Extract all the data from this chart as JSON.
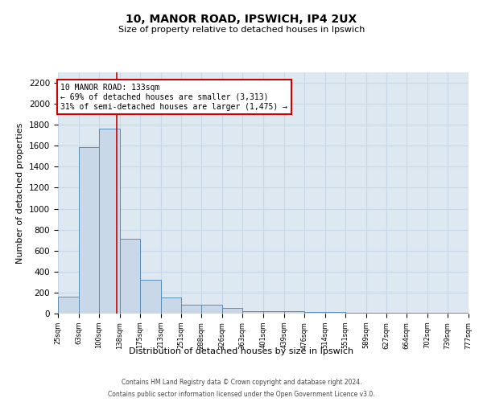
{
  "title1": "10, MANOR ROAD, IPSWICH, IP4 2UX",
  "title2": "Size of property relative to detached houses in Ipswich",
  "xlabel": "Distribution of detached houses by size in Ipswich",
  "ylabel": "Number of detached properties",
  "bin_edges": [
    25,
    63,
    100,
    138,
    175,
    213,
    251,
    288,
    326,
    363,
    401,
    439,
    476,
    514,
    551,
    589,
    627,
    664,
    702,
    739,
    777
  ],
  "bar_heights": [
    160,
    1590,
    1760,
    710,
    320,
    155,
    85,
    85,
    50,
    25,
    20,
    20,
    15,
    15,
    10,
    10,
    10,
    10,
    10,
    10
  ],
  "bar_color": "#c8d8e8",
  "bar_edge_color": "#5b8db8",
  "red_line_x": 133,
  "annotation_text": "10 MANOR ROAD: 133sqm\n← 69% of detached houses are smaller (3,313)\n31% of semi-detached houses are larger (1,475) →",
  "annotation_box_color": "#ffffff",
  "annotation_box_edge": "#cc0000",
  "ylim": [
    0,
    2300
  ],
  "yticks": [
    0,
    200,
    400,
    600,
    800,
    1000,
    1200,
    1400,
    1600,
    1800,
    2000,
    2200
  ],
  "grid_color": "#c8d8e8",
  "bg_color": "#dde8f0",
  "footer1": "Contains HM Land Registry data © Crown copyright and database right 2024.",
  "footer2": "Contains public sector information licensed under the Open Government Licence v3.0."
}
